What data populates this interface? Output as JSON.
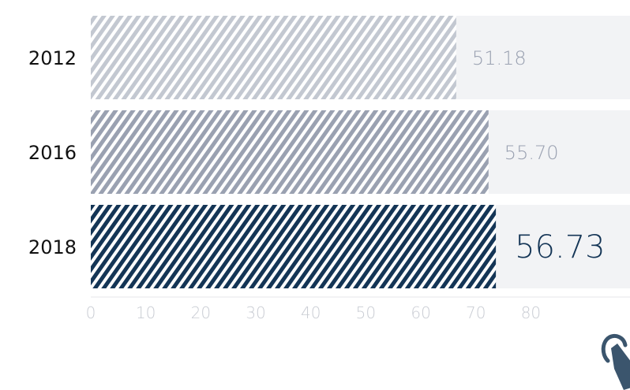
{
  "chart_data": {
    "type": "bar",
    "orientation": "horizontal",
    "categories": [
      "2012",
      "2016",
      "2018"
    ],
    "values": [
      51.18,
      55.7,
      56.73
    ],
    "value_labels": [
      "51.18",
      "55.70",
      "56.73"
    ],
    "highlight_index": 2,
    "xlim": [
      0,
      80
    ],
    "x_ticks": [
      0,
      10,
      20,
      30,
      40,
      50,
      60,
      70,
      80
    ],
    "title": "",
    "xlabel": "",
    "ylabel": "",
    "grid": false,
    "legend": "none",
    "colors": {
      "bar_fills": [
        "#c3c8d1",
        "#9aa1b1",
        "#143556"
      ],
      "track": "#f2f3f5",
      "label_muted": "#9aa1b1",
      "label_highlight": "#143556",
      "tick": "#c9ccd3",
      "category_text": "#111111",
      "icon": "#3b556d"
    },
    "icons": [
      "pointer-hand-icon"
    ]
  }
}
